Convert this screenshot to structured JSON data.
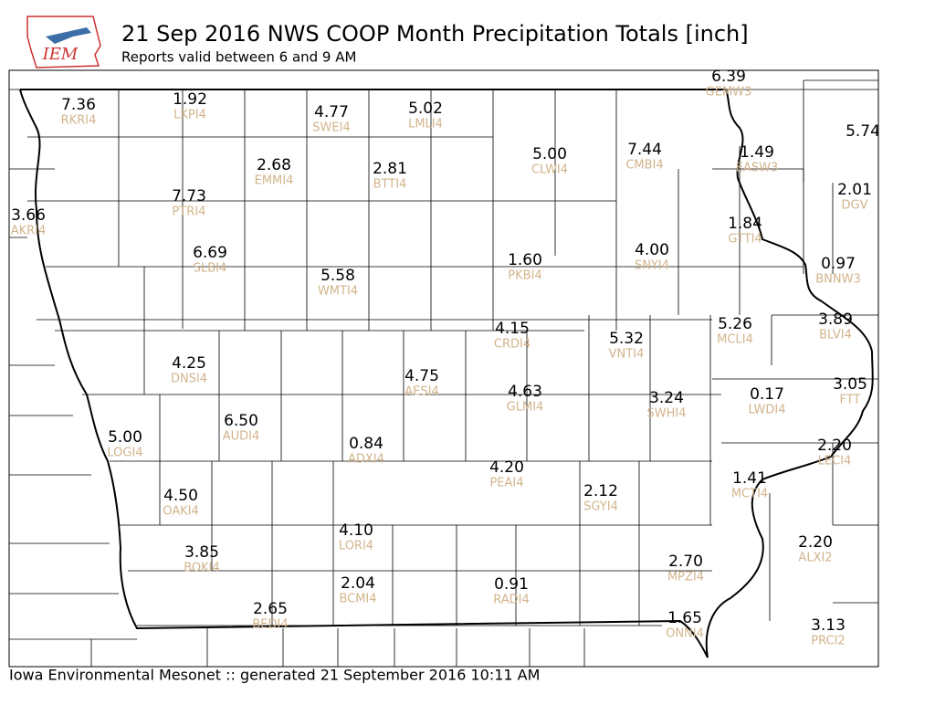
{
  "header": {
    "logo": "IEM",
    "title": "21 Sep 2016 NWS COOP Month Precipitation Totals [inch]",
    "subtitle": "Reports valid between 6 and 9 AM"
  },
  "footer": "Iowa Environmental Mesonet :: generated 21 September 2016 10:11 AM",
  "stations": [
    {
      "value": "7.36",
      "id": "RKRI4"
    },
    {
      "value": "1.92",
      "id": "LKPI4"
    },
    {
      "value": "4.77",
      "id": "SWEI4"
    },
    {
      "value": "5.02",
      "id": "LMLI4"
    },
    {
      "value": "6.39",
      "id": "GEMW3"
    },
    {
      "value": "5.74"
    },
    {
      "value": "5.00",
      "id": "CLWI4"
    },
    {
      "value": "7.44",
      "id": "CMBI4"
    },
    {
      "value": "1.49",
      "id": "EASW3"
    },
    {
      "value": "2.68",
      "id": "EMMI4"
    },
    {
      "value": "2.81",
      "id": "BTTI4"
    },
    {
      "value": "2.01",
      "id": "DGV"
    },
    {
      "value": "7.73",
      "id": "PTRI4"
    },
    {
      "value": "3.66",
      "id": "AKRI4"
    },
    {
      "value": "1.84",
      "id": "GTTI4"
    },
    {
      "value": "6.69",
      "id": "SLBI4"
    },
    {
      "value": "1.60",
      "id": "PKBI4"
    },
    {
      "value": "4.00",
      "id": "SNYI4"
    },
    {
      "value": "0.97",
      "id": "BNNW3"
    },
    {
      "value": "5.58",
      "id": "WMTI4"
    },
    {
      "value": "4.15",
      "id": "CRDI4"
    },
    {
      "value": "5.32",
      "id": "VNTI4"
    },
    {
      "value": "5.26",
      "id": "MCLI4"
    },
    {
      "value": "3.89",
      "id": "BLVI4"
    },
    {
      "value": "4.25",
      "id": "DNSI4"
    },
    {
      "value": "4.75",
      "id": "AESI4"
    },
    {
      "value": "3.05",
      "id": "FTT"
    },
    {
      "value": "4.63",
      "id": "GLMI4"
    },
    {
      "value": "3.24",
      "id": "SWHI4"
    },
    {
      "value": "0.17",
      "id": "LWDI4"
    },
    {
      "value": "6.50",
      "id": "AUDI4"
    },
    {
      "value": "5.00",
      "id": "LOGI4"
    },
    {
      "value": "0.84",
      "id": "ADXI4"
    },
    {
      "value": "2.20",
      "id": "LECI4"
    },
    {
      "value": "4.20",
      "id": "PEAI4"
    },
    {
      "value": "1.41",
      "id": "MCTI4"
    },
    {
      "value": "4.50",
      "id": "OAKI4"
    },
    {
      "value": "2.12",
      "id": "SGYI4"
    },
    {
      "value": "4.10",
      "id": "LORI4"
    },
    {
      "value": "2.20",
      "id": "ALXI2"
    },
    {
      "value": "3.85",
      "id": "BOKI4"
    },
    {
      "value": "2.70",
      "id": "MPZI4"
    },
    {
      "value": "2.04",
      "id": "BCMI4"
    },
    {
      "value": "0.91",
      "id": "RADI4"
    },
    {
      "value": "2.65",
      "id": "BEDI4"
    },
    {
      "value": "1.65",
      "id": "ONNI4"
    },
    {
      "value": "3.13",
      "id": "PRCI2"
    }
  ]
}
